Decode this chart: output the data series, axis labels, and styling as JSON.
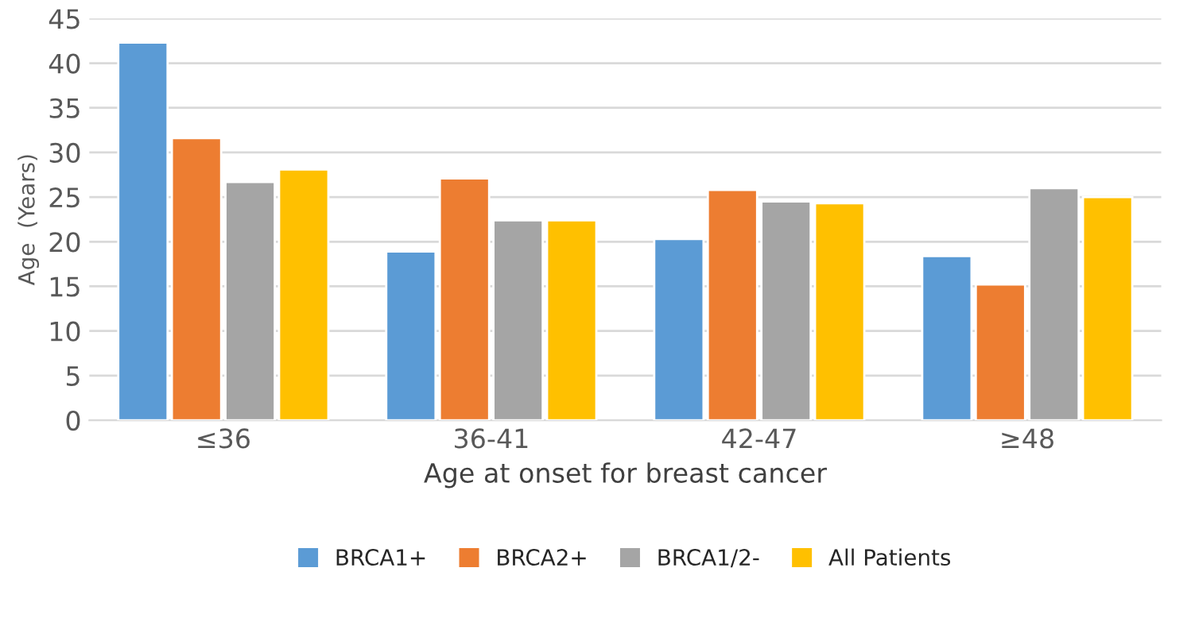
{
  "chart_data": {
    "type": "bar",
    "xlabel": "Age at onset for breast cancer",
    "ylabel": "Age  (Years)",
    "categories": [
      "≤36",
      "36-41",
      "42-47",
      "≥48"
    ],
    "series": [
      {
        "name": "BRCA1+",
        "color": "#5b9bd5",
        "values": [
          42.3,
          18.9,
          20.3,
          18.4
        ]
      },
      {
        "name": "BRCA2+",
        "color": "#ed7d31",
        "values": [
          31.6,
          27.1,
          25.8,
          15.2
        ]
      },
      {
        "name": "BRCA1/2-",
        "color": "#a5a5a5",
        "values": [
          26.7,
          22.4,
          24.5,
          26.0
        ]
      },
      {
        "name": "All Patients",
        "color": "#ffc000",
        "values": [
          28.1,
          22.4,
          24.3,
          25.0
        ]
      }
    ],
    "ylim": [
      0,
      45
    ],
    "yticks": [
      0,
      5,
      10,
      15,
      20,
      25,
      30,
      35,
      40,
      45
    ],
    "grid": "y",
    "legend": "bottom"
  }
}
